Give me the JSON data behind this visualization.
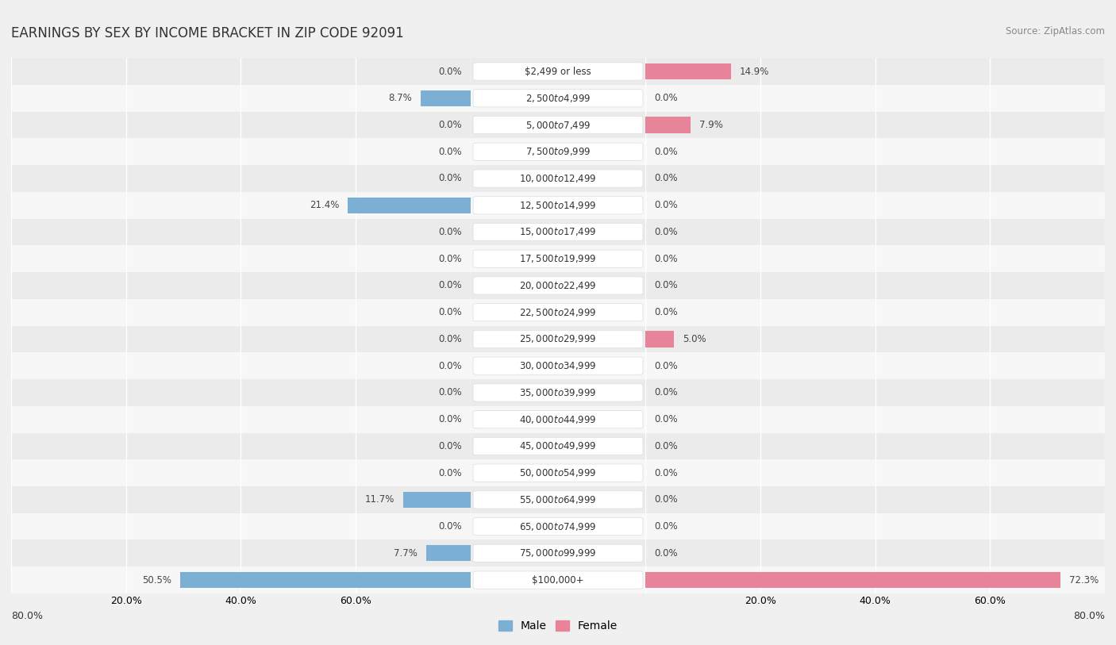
{
  "title": "EARNINGS BY SEX BY INCOME BRACKET IN ZIP CODE 92091",
  "source": "Source: ZipAtlas.com",
  "categories": [
    "$2,499 or less",
    "$2,500 to $4,999",
    "$5,000 to $7,499",
    "$7,500 to $9,999",
    "$10,000 to $12,499",
    "$12,500 to $14,999",
    "$15,000 to $17,499",
    "$17,500 to $19,999",
    "$20,000 to $22,499",
    "$22,500 to $24,999",
    "$25,000 to $29,999",
    "$30,000 to $34,999",
    "$35,000 to $39,999",
    "$40,000 to $44,999",
    "$45,000 to $49,999",
    "$50,000 to $54,999",
    "$55,000 to $64,999",
    "$65,000 to $74,999",
    "$75,000 to $99,999",
    "$100,000+"
  ],
  "male_values": [
    0.0,
    8.7,
    0.0,
    0.0,
    0.0,
    21.4,
    0.0,
    0.0,
    0.0,
    0.0,
    0.0,
    0.0,
    0.0,
    0.0,
    0.0,
    0.0,
    11.7,
    0.0,
    7.7,
    50.5
  ],
  "female_values": [
    14.9,
    0.0,
    7.9,
    0.0,
    0.0,
    0.0,
    0.0,
    0.0,
    0.0,
    0.0,
    5.0,
    0.0,
    0.0,
    0.0,
    0.0,
    0.0,
    0.0,
    0.0,
    0.0,
    72.3
  ],
  "male_color": "#7bafd4",
  "female_color": "#e8849a",
  "background_color": "#f0f0f0",
  "row_colors": [
    "#ebebeb",
    "#f7f7f7"
  ],
  "axis_limit": 80.0,
  "title_fontsize": 12,
  "label_fontsize": 8.5,
  "value_fontsize": 8.5,
  "tick_fontsize": 9,
  "bar_height": 0.6,
  "cat_label_fontsize": 8.5,
  "cat_pill_color": "#ffffff",
  "cat_pill_edgecolor": "#dddddd"
}
